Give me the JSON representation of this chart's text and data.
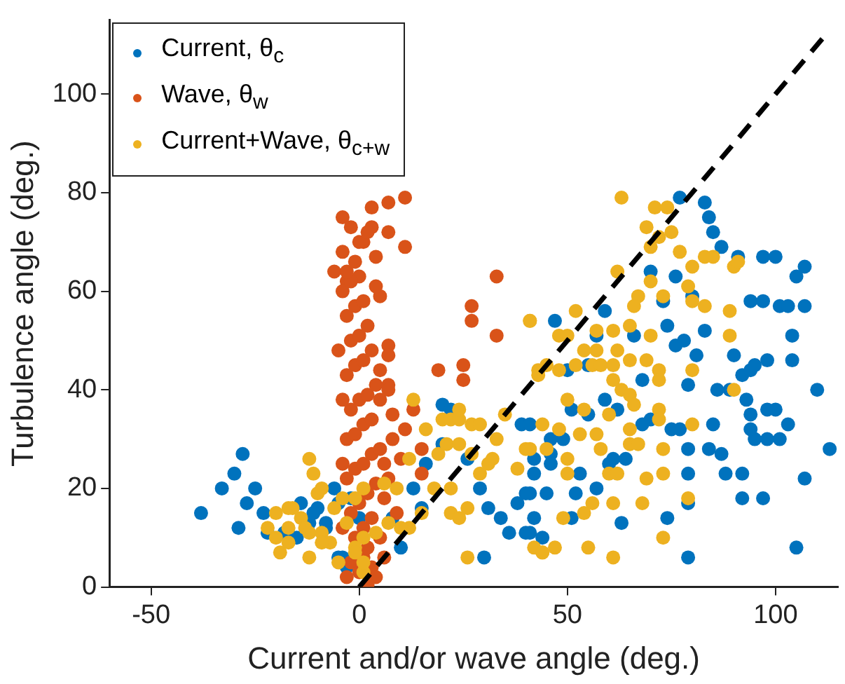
{
  "chart_data": {
    "type": "scatter",
    "xlabel": "Current and/or wave angle (deg.)",
    "ylabel": "Turbulence angle (deg.)",
    "xlim": [
      -60,
      115
    ],
    "xticks": [
      -50,
      0,
      50,
      100
    ],
    "ylim": [
      0,
      115
    ],
    "yticks": [
      0,
      20,
      40,
      60,
      80,
      100
    ],
    "grid": false,
    "legend": "top left",
    "marker": "circle",
    "series": [
      {
        "name": "Current, θ$_{c}$",
        "color": "#0072bd",
        "x": [
          -38,
          -33,
          -30,
          -28,
          -27,
          -25,
          -23,
          -22,
          -29,
          -18,
          -14,
          -15,
          -12,
          -10,
          -8,
          -6,
          -5,
          -4,
          -3,
          -2,
          0,
          -8,
          -11,
          77,
          83,
          84,
          85,
          87,
          91,
          97,
          100,
          107,
          105,
          94,
          97,
          101,
          103,
          107,
          104,
          104,
          110,
          113,
          107,
          105,
          79,
          97,
          92,
          92,
          88,
          87,
          84,
          79,
          101,
          98,
          95,
          94,
          98,
          103,
          94,
          93,
          100,
          92,
          94,
          98,
          95,
          90,
          89,
          86,
          85,
          79,
          81,
          83,
          78,
          76,
          74,
          73,
          76,
          80,
          70,
          70,
          75,
          77,
          79,
          79,
          74,
          63,
          57,
          61,
          64,
          68,
          62,
          59,
          47,
          59,
          57,
          66,
          68,
          55,
          50,
          51,
          55,
          49,
          46,
          42,
          41,
          45,
          42,
          40,
          52,
          51,
          53,
          60,
          39,
          41,
          46,
          42,
          40,
          38,
          34,
          36,
          41,
          31,
          29,
          26,
          20,
          16,
          15,
          10,
          8,
          13,
          20,
          22,
          44,
          46,
          -5,
          30
        ],
        "values": [
          15,
          20,
          23,
          27,
          17,
          20,
          15,
          11,
          12,
          11,
          17,
          10,
          13,
          16,
          13,
          20,
          17,
          6,
          4,
          18,
          14,
          12,
          15,
          79,
          78,
          75,
          72,
          69,
          67,
          67,
          67,
          65,
          63,
          58,
          58,
          57,
          57,
          57,
          51,
          46,
          40,
          28,
          22,
          8,
          6,
          18,
          18,
          23,
          23,
          27,
          28,
          28,
          30,
          30,
          30,
          32,
          36,
          33,
          35,
          38,
          36,
          43,
          44,
          46,
          45,
          47,
          40,
          40,
          33,
          41,
          47,
          52,
          50,
          49,
          53,
          58,
          63,
          59,
          64,
          34,
          32,
          32,
          23,
          17,
          14,
          13,
          20,
          26,
          26,
          33,
          36,
          38,
          54,
          56,
          51,
          51,
          42,
          45,
          44,
          36,
          35,
          30,
          27,
          26,
          19,
          19,
          14,
          11,
          19,
          14,
          23,
          25,
          33,
          33,
          25,
          23,
          19,
          17,
          14,
          11,
          11,
          16,
          20,
          26,
          29,
          25,
          16,
          8,
          14,
          20,
          37,
          36,
          10,
          30,
          6,
          6
        ]
      },
      {
        "name": "Wave, θ$_{w}$",
        "color": "#d95319",
        "x": [
          33,
          27,
          27,
          33,
          19,
          25,
          25,
          5,
          11,
          11,
          7,
          3,
          -4,
          3,
          7,
          1,
          4,
          -4,
          -6,
          0,
          -3,
          7,
          7,
          7,
          5,
          13,
          15,
          15,
          -3,
          -2,
          0,
          1,
          2,
          -1,
          1,
          3,
          -2,
          0,
          2,
          4,
          -3,
          -1,
          1,
          3,
          5,
          -3,
          -1,
          1,
          3,
          -2,
          0,
          2,
          4,
          -3,
          -1,
          1,
          3,
          -2,
          0,
          2,
          -3,
          -1,
          1,
          -4,
          -2,
          4,
          -3,
          -1,
          0,
          2,
          -2,
          8,
          6,
          6,
          5,
          3,
          7,
          8,
          5,
          -4,
          -4,
          4,
          6,
          2,
          9,
          10,
          -5,
          -4,
          11,
          7
        ],
        "values": [
          63,
          57,
          54,
          51,
          44,
          45,
          42,
          59,
          69,
          79,
          78,
          77,
          75,
          73,
          72,
          70,
          67,
          68,
          64,
          63,
          62,
          49,
          47,
          41,
          38,
          36,
          28,
          23,
          2,
          5,
          3,
          6,
          8,
          10,
          12,
          14,
          15,
          17,
          19,
          21,
          22,
          24,
          25,
          27,
          28,
          30,
          31,
          33,
          34,
          36,
          38,
          39,
          41,
          43,
          45,
          46,
          48,
          50,
          51,
          53,
          55,
          57,
          58,
          60,
          62,
          61,
          64,
          66,
          70,
          72,
          73,
          30,
          25,
          18,
          10,
          4,
          22,
          35,
          44,
          38,
          12,
          2,
          6,
          0.5,
          15,
          26,
          48,
          25,
          32,
          40
        ]
      },
      {
        "name": "Current+Wave, θ$_{c+w}$",
        "color": "#edb120",
        "x": [
          -16,
          -14,
          -13,
          -17,
          -19,
          -22,
          -20,
          -12,
          -10,
          -9,
          -7,
          -5,
          -3,
          -1,
          1,
          -12,
          -11,
          -9,
          -17,
          -20,
          -17,
          -12,
          -9,
          -6,
          -4,
          -1,
          1,
          6,
          9,
          12,
          13,
          16,
          20,
          22,
          24,
          24,
          27,
          29,
          19,
          21,
          24,
          27,
          29,
          31,
          32,
          33,
          35,
          40,
          38,
          22,
          22,
          24,
          26,
          18,
          15,
          12,
          10,
          7,
          4,
          1,
          1,
          -1,
          26,
          42,
          44,
          41,
          43,
          45,
          63,
          71,
          74,
          69,
          72,
          75,
          70,
          77,
          80,
          83,
          85,
          90,
          91,
          79,
          70,
          62,
          67,
          66,
          73,
          80,
          83,
          89,
          52,
          41,
          48,
          50,
          57,
          61,
          65,
          70,
          54,
          57,
          62,
          89,
          52,
          56,
          58,
          61,
          65,
          69,
          72,
          80,
          48,
          43,
          61,
          63,
          65,
          72,
          90,
          66,
          50,
          54,
          60,
          72,
          72,
          80,
          44,
          48,
          53,
          57,
          58,
          65,
          65,
          67,
          73,
          41,
          45,
          50,
          50,
          60,
          62,
          69,
          73,
          79,
          56,
          61,
          68,
          49,
          54,
          73,
          44,
          47,
          55,
          61
        ],
        "values": [
          16,
          14,
          12,
          9,
          7,
          12,
          10,
          6,
          19,
          11,
          9,
          5,
          13,
          8,
          3,
          26,
          23,
          20,
          16,
          15,
          12,
          11,
          9,
          16,
          18,
          18,
          20,
          21,
          20,
          26,
          38,
          32,
          34,
          34,
          34,
          36,
          33,
          33,
          27,
          29,
          29,
          27,
          23,
          25,
          26,
          30,
          35,
          28,
          24,
          20,
          15,
          14,
          16,
          20,
          15,
          12,
          12,
          13,
          11,
          10,
          5,
          7,
          6,
          8,
          7,
          54,
          44,
          45,
          79,
          77,
          77,
          73,
          71,
          72,
          69,
          68,
          65,
          67,
          67,
          65,
          66,
          61,
          62,
          64,
          59,
          57,
          59,
          58,
          57,
          56,
          56,
          54,
          51,
          51,
          52,
          52,
          53,
          51,
          48,
          48,
          48,
          51,
          45,
          45,
          45,
          45,
          46,
          46,
          44,
          44,
          44,
          43,
          42,
          40,
          39,
          42,
          40,
          37,
          38,
          36,
          35,
          36,
          34,
          33,
          33,
          32,
          31,
          31,
          28,
          32,
          29,
          29,
          28,
          28,
          28,
          26,
          23,
          23,
          23,
          22,
          23,
          18,
          17,
          17,
          17,
          14,
          15,
          10,
          7,
          8,
          8,
          6
        ]
      },
      {
        "type": "line",
        "color": "#000000",
        "line_style": "dashed",
        "marker": "none",
        "x": [
          0,
          112
        ],
        "values": [
          0,
          112
        ]
      }
    ]
  }
}
